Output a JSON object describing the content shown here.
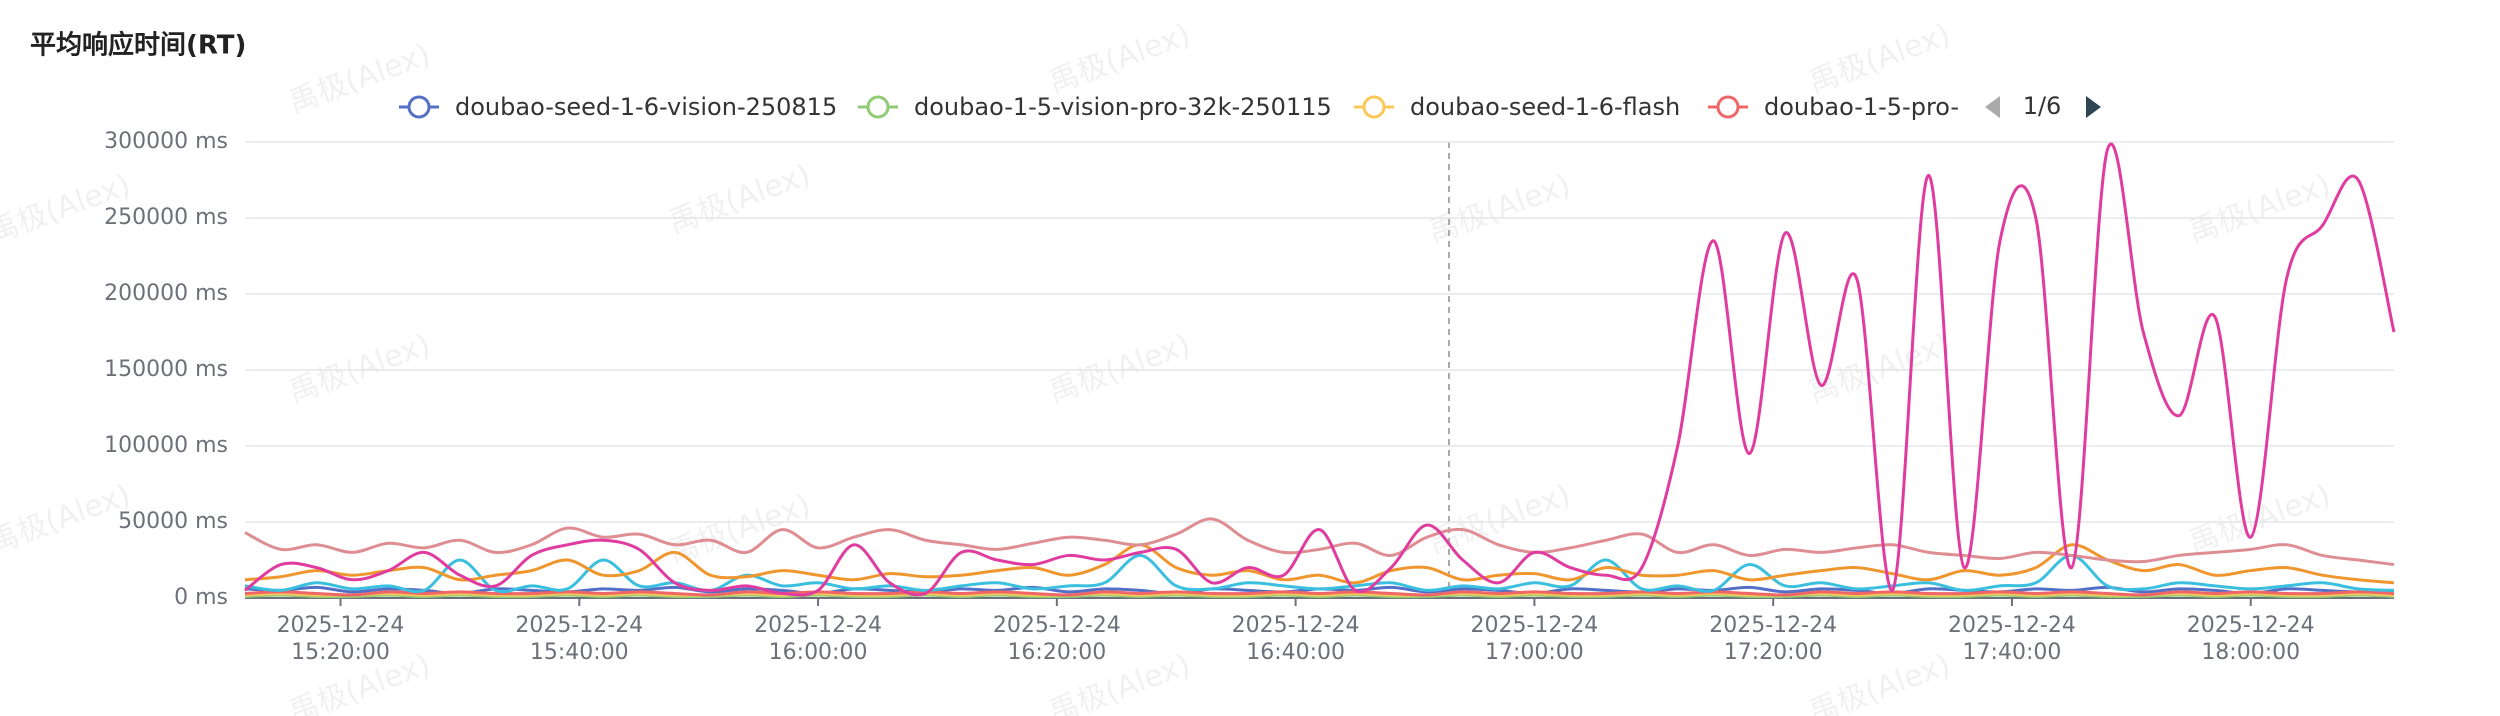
{
  "chart_data": {
    "type": "line",
    "title": "平均响应时间(RT)",
    "watermark": "禹极(Alex)",
    "legend_page": "1/6",
    "x": [
      "2025-12-24 15:12:00",
      "2025-12-24 15:15:00",
      "2025-12-24 15:18:00",
      "2025-12-24 15:21:00",
      "2025-12-24 15:24:00",
      "2025-12-24 15:27:00",
      "2025-12-24 15:30:00",
      "2025-12-24 15:33:00",
      "2025-12-24 15:36:00",
      "2025-12-24 15:39:00",
      "2025-12-24 15:42:00",
      "2025-12-24 15:45:00",
      "2025-12-24 15:48:00",
      "2025-12-24 15:51:00",
      "2025-12-24 15:54:00",
      "2025-12-24 15:57:00",
      "2025-12-24 16:00:00",
      "2025-12-24 16:03:00",
      "2025-12-24 16:06:00",
      "2025-12-24 16:09:00",
      "2025-12-24 16:12:00",
      "2025-12-24 16:15:00",
      "2025-12-24 16:18:00",
      "2025-12-24 16:21:00",
      "2025-12-24 16:24:00",
      "2025-12-24 16:27:00",
      "2025-12-24 16:30:00",
      "2025-12-24 16:33:00",
      "2025-12-24 16:36:00",
      "2025-12-24 16:39:00",
      "2025-12-24 16:42:00",
      "2025-12-24 16:45:00",
      "2025-12-24 16:48:00",
      "2025-12-24 16:51:00",
      "2025-12-24 16:54:00",
      "2025-12-24 16:57:00",
      "2025-12-24 17:00:00",
      "2025-12-24 17:03:00",
      "2025-12-24 17:06:00",
      "2025-12-24 17:09:00",
      "2025-12-24 17:12:00",
      "2025-12-24 17:15:00",
      "2025-12-24 17:18:00",
      "2025-12-24 17:21:00",
      "2025-12-24 17:24:00",
      "2025-12-24 17:27:00",
      "2025-12-24 17:30:00",
      "2025-12-24 17:33:00",
      "2025-12-24 17:36:00",
      "2025-12-24 17:39:00",
      "2025-12-24 17:42:00",
      "2025-12-24 17:45:00",
      "2025-12-24 17:48:00",
      "2025-12-24 17:51:00",
      "2025-12-24 17:54:00",
      "2025-12-24 17:57:00",
      "2025-12-24 18:00:00",
      "2025-12-24 18:03:00",
      "2025-12-24 18:06:00",
      "2025-12-24 18:09:00",
      "2025-12-24 18:12:00"
    ],
    "xlim": [
      "2025-12-24 15:12:00",
      "2025-12-24 18:12:00"
    ],
    "xticks": [
      "2025-12-24 15:20:00",
      "2025-12-24 15:40:00",
      "2025-12-24 16:00:00",
      "2025-12-24 16:20:00",
      "2025-12-24 16:40:00",
      "2025-12-24 17:00:00",
      "2025-12-24 17:20:00",
      "2025-12-24 17:40:00",
      "2025-12-24 18:00:00"
    ],
    "ylim": [
      0,
      300000
    ],
    "yticks": [
      {
        "value": 0,
        "label": "0 ms"
      },
      {
        "value": 50000,
        "label": "50000 ms"
      },
      {
        "value": 100000,
        "label": "100000 ms"
      },
      {
        "value": 150000,
        "label": "150000 ms"
      },
      {
        "value": 200000,
        "label": "200000 ms"
      },
      {
        "value": 250000,
        "label": "250000 ms"
      },
      {
        "value": 300000,
        "label": "300000 ms"
      }
    ],
    "grid": true,
    "series": [
      {
        "name": "doubao-seed-1-6-vision-250815",
        "color": "#5470c6",
        "values": [
          6000,
          5000,
          7000,
          4000,
          6000,
          5000,
          3000,
          6000,
          5000,
          4000,
          6000,
          5000,
          7000,
          4000,
          6000,
          5000,
          3000,
          6000,
          5000,
          4000,
          6000,
          5000,
          7000,
          4000,
          6000,
          5000,
          3000,
          6000,
          5000,
          4000,
          6000,
          5000,
          7000,
          4000,
          6000,
          5000,
          3000,
          6000,
          5000,
          4000,
          6000,
          5000,
          7000,
          4000,
          6000,
          5000,
          3000,
          6000,
          5000,
          4000,
          6000,
          5000,
          7000,
          4000,
          6000,
          5000,
          3000,
          6000,
          5000,
          4000,
          5000
        ]
      },
      {
        "name": "doubao-1-5-vision-pro-32k-250115",
        "color": "#91cc75",
        "values": [
          1000,
          2000,
          1000,
          1000,
          2000,
          1000,
          2000,
          1000,
          1000,
          2000,
          1000,
          2000,
          1000,
          1000,
          2000,
          1000,
          2000,
          1000,
          1000,
          2000,
          1000,
          2000,
          1000,
          1000,
          2000,
          1000,
          2000,
          1000,
          1000,
          2000,
          1000,
          2000,
          1000,
          1000,
          2000,
          1000,
          2000,
          1000,
          1000,
          2000,
          1000,
          2000,
          1000,
          1000,
          2000,
          1000,
          2000,
          1000,
          1000,
          2000,
          1000,
          2000,
          1000,
          1000,
          2000,
          1000,
          2000,
          1000,
          1000,
          2000,
          1000
        ]
      },
      {
        "name": "doubao-seed-1-6-flash",
        "color": "#fac858",
        "values": [
          2000,
          3000,
          2000,
          2000,
          3000,
          2000,
          3000,
          2000,
          2000,
          3000,
          2000,
          3000,
          2000,
          2000,
          3000,
          2000,
          3000,
          2000,
          2000,
          3000,
          2000,
          3000,
          2000,
          2000,
          3000,
          2000,
          3000,
          2000,
          2000,
          3000,
          2000,
          3000,
          2000,
          2000,
          3000,
          2000,
          3000,
          2000,
          2000,
          3000,
          2000,
          3000,
          2000,
          2000,
          3000,
          2000,
          3000,
          2000,
          2000,
          3000,
          2000,
          3000,
          2000,
          2000,
          3000,
          2000,
          3000,
          2000,
          2000,
          3000,
          2000
        ]
      },
      {
        "name": "doubao-1-5-pro-",
        "color": "#ee6666",
        "values": [
          3000,
          4000,
          3000,
          2000,
          4000,
          3000,
          4000,
          3000,
          3000,
          4000,
          3000,
          4000,
          3000,
          2000,
          4000,
          3000,
          4000,
          3000,
          3000,
          4000,
          3000,
          4000,
          3000,
          2000,
          4000,
          3000,
          4000,
          3000,
          3000,
          4000,
          3000,
          4000,
          3000,
          2000,
          4000,
          3000,
          4000,
          3000,
          3000,
          4000,
          3000,
          4000,
          3000,
          2000,
          4000,
          3000,
          4000,
          3000,
          3000,
          4000,
          3000,
          4000,
          3000,
          2000,
          4000,
          3000,
          4000,
          3000,
          3000,
          4000,
          3000
        ]
      },
      {
        "color": "#3bbfdf",
        "values": [
          8000,
          5000,
          10000,
          6000,
          8000,
          5000,
          25000,
          5000,
          8000,
          6000,
          25000,
          8000,
          10000,
          5000,
          15000,
          8000,
          10000,
          6000,
          8000,
          5000,
          8000,
          10000,
          6000,
          8000,
          10000,
          28000,
          8000,
          6000,
          10000,
          8000,
          6000,
          8000,
          10000,
          5000,
          8000,
          6000,
          10000,
          8000,
          25000,
          6000,
          8000,
          5000,
          22000,
          8000,
          10000,
          6000,
          8000,
          10000,
          5000,
          8000,
          10000,
          28000,
          8000,
          6000,
          10000,
          8000,
          6000,
          8000,
          10000,
          6000,
          5000
        ]
      },
      {
        "color": "#f0962e",
        "values": [
          12000,
          14000,
          18000,
          15000,
          18000,
          20000,
          12000,
          15000,
          18000,
          25000,
          15000,
          18000,
          30000,
          15000,
          14000,
          18000,
          15000,
          12000,
          16000,
          14000,
          15000,
          18000,
          20000,
          15000,
          22000,
          35000,
          20000,
          15000,
          18000,
          12000,
          15000,
          10000,
          18000,
          20000,
          12000,
          15000,
          16000,
          12000,
          20000,
          15000,
          15000,
          18000,
          12000,
          15000,
          18000,
          20000,
          16000,
          12000,
          18000,
          15000,
          20000,
          35000,
          25000,
          18000,
          22000,
          15000,
          18000,
          20000,
          15000,
          12000,
          10000
        ]
      },
      {
        "color": "#de8e92",
        "values": [
          43000,
          32000,
          35000,
          30000,
          36000,
          33000,
          38000,
          30000,
          35000,
          46000,
          40000,
          42000,
          35000,
          38000,
          30000,
          45000,
          33000,
          40000,
          45000,
          38000,
          35000,
          32000,
          36000,
          40000,
          38000,
          35000,
          42000,
          52000,
          38000,
          30000,
          32000,
          36000,
          28000,
          40000,
          45000,
          35000,
          30000,
          33000,
          38000,
          42000,
          30000,
          35000,
          28000,
          32000,
          30000,
          33000,
          35000,
          30000,
          28000,
          26000,
          30000,
          28000,
          25000,
          24000,
          28000,
          30000,
          32000,
          35000,
          28000,
          25000,
          22000
        ]
      },
      {
        "color": "#e03ca0",
        "values": [
          5000,
          22000,
          20000,
          12000,
          18000,
          30000,
          15000,
          8000,
          28000,
          35000,
          38000,
          32000,
          10000,
          5000,
          8000,
          3000,
          5000,
          35000,
          10000,
          3000,
          30000,
          25000,
          22000,
          28000,
          25000,
          30000,
          32000,
          10000,
          20000,
          15000,
          45000,
          5000,
          20000,
          48000,
          25000,
          10000,
          30000,
          20000,
          15000,
          20000,
          100000,
          235000,
          95000,
          240000,
          140000,
          210000,
          5000,
          278000,
          20000,
          235000,
          250000,
          20000,
          295000,
          175000,
          120000,
          185000,
          40000,
          210000,
          245000,
          275000,
          175000
        ]
      }
    ]
  }
}
